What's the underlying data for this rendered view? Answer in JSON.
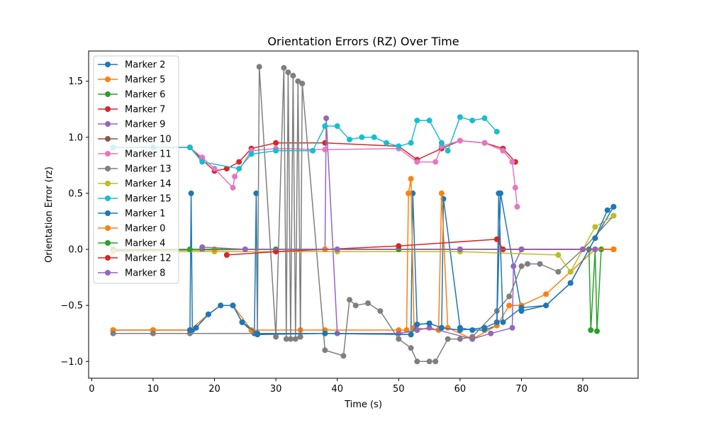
{
  "chart_data": {
    "type": "line",
    "title": "Orientation Errors (RZ) Over Time",
    "xlabel": "Time (s)",
    "ylabel": "Orientation Error (rz)",
    "xlim": [
      -0.5,
      89
    ],
    "ylim": [
      -1.15,
      1.77
    ],
    "xticks": [
      0,
      10,
      20,
      30,
      40,
      50,
      60,
      70,
      80
    ],
    "yticks": [
      -1.0,
      -0.5,
      0.0,
      0.5,
      1.0,
      1.5
    ],
    "ytick_labels": [
      "−1.0",
      "−0.5",
      "0.0",
      "0.5",
      "1.0",
      "1.5"
    ],
    "grid": false,
    "legend_position": "upper-left",
    "marker": "circle",
    "series": [
      {
        "name": "Marker 2",
        "color": "#1f77b4",
        "x": [
          3.5,
          10,
          16,
          16.2,
          16.4,
          17,
          19,
          21,
          23,
          24.5,
          26.5,
          26.8,
          27,
          38,
          52,
          52.3,
          53,
          55,
          57,
          57.3,
          60,
          62,
          64,
          66,
          66.6,
          70,
          74,
          78,
          82,
          85
        ],
        "y": [
          -0.72,
          -0.72,
          -0.72,
          0.5,
          -0.72,
          -0.7,
          -0.58,
          -0.5,
          -0.5,
          -0.65,
          -0.75,
          0.5,
          -0.76,
          -0.75,
          -0.76,
          0.5,
          -0.67,
          -0.66,
          -0.7,
          0.45,
          -0.7,
          -0.72,
          -0.72,
          -0.68,
          0.5,
          -0.55,
          -0.5,
          -0.3,
          0.1,
          0.38
        ]
      },
      {
        "name": "Marker 5",
        "color": "#ff7f0e",
        "x": [
          3.5,
          10,
          16,
          19,
          21,
          23,
          26,
          34,
          38,
          50,
          51.3,
          51.6,
          52,
          52.5,
          56.5,
          57,
          58,
          62,
          66,
          68,
          70,
          74,
          78,
          82,
          85
        ],
        "y": [
          -0.72,
          -0.72,
          -0.72,
          -0.58,
          -0.5,
          -0.5,
          -0.72,
          -0.72,
          -0.72,
          -0.72,
          -0.72,
          0.5,
          0.63,
          -0.7,
          -0.72,
          0.5,
          -0.7,
          -0.8,
          -0.68,
          -0.5,
          -0.5,
          -0.4,
          -0.2,
          0.0,
          0.0
        ]
      },
      {
        "name": "Marker 6",
        "color": "#2ca02c",
        "x": [
          3.5,
          20,
          40,
          60,
          80,
          81,
          81.3,
          82,
          82.3,
          83,
          85
        ],
        "y": [
          0.0,
          0.0,
          0.0,
          0.0,
          0.0,
          0.0,
          -0.72,
          0.0,
          -0.73,
          0.0,
          0.0
        ]
      },
      {
        "name": "Marker 7",
        "color": "#d62728",
        "x": [
          3.5,
          10,
          16,
          18,
          20,
          22,
          24,
          26,
          30,
          38,
          50,
          53,
          57,
          60,
          64,
          67,
          69
        ],
        "y": [
          0.91,
          0.91,
          0.91,
          0.8,
          0.7,
          0.72,
          0.78,
          0.9,
          0.95,
          0.95,
          0.92,
          0.8,
          0.9,
          0.97,
          0.95,
          0.9,
          0.78
        ]
      },
      {
        "name": "Marker 9",
        "color": "#9467bd",
        "x": [
          18,
          25,
          38,
          38.2,
          40,
          50,
          53,
          55,
          62,
          65,
          68.5,
          68.7,
          70,
          85
        ],
        "y": [
          0.0,
          0.0,
          0.0,
          1.17,
          -0.75,
          -0.75,
          -0.72,
          -0.7,
          -0.8,
          -0.75,
          -0.7,
          -0.15,
          0.0,
          0.0
        ]
      },
      {
        "name": "Marker 10",
        "color": "#8c564b",
        "x": [
          3.5,
          30,
          60,
          85
        ],
        "y": [
          -0.01,
          0.0,
          0.0,
          0.0
        ]
      },
      {
        "name": "Marker 11",
        "color": "#e377c2",
        "x": [
          3.5,
          10,
          16,
          18,
          20,
          23,
          23.3,
          26,
          30,
          38,
          50,
          53,
          56,
          57,
          60,
          64,
          67,
          68.5,
          69,
          69.3
        ],
        "y": [
          0.91,
          0.91,
          0.91,
          0.82,
          0.72,
          0.55,
          0.65,
          0.88,
          0.9,
          0.89,
          0.9,
          0.78,
          0.78,
          0.92,
          0.97,
          0.95,
          0.88,
          0.78,
          0.55,
          0.38
        ]
      },
      {
        "name": "Marker 13",
        "color": "#7f7f7f",
        "x": [
          3.5,
          10,
          16,
          27,
          27.3,
          30,
          31.3,
          31.7,
          32,
          32.4,
          32.8,
          33.2,
          33.6,
          34,
          34.3,
          38,
          41,
          42,
          43,
          45,
          47,
          50,
          52,
          53,
          55,
          56,
          58,
          60,
          62,
          66,
          68,
          70,
          71,
          73,
          76,
          80,
          85
        ],
        "y": [
          -0.75,
          -0.75,
          -0.75,
          -0.75,
          1.63,
          -0.78,
          1.62,
          -0.8,
          1.58,
          -0.8,
          1.55,
          -0.8,
          1.5,
          -0.78,
          1.48,
          -0.9,
          -0.95,
          -0.45,
          -0.5,
          -0.48,
          -0.55,
          -0.8,
          -0.88,
          -1.0,
          -1.0,
          -1.0,
          -0.8,
          -0.8,
          -0.78,
          -0.55,
          -0.42,
          -0.15,
          -0.13,
          -0.13,
          -0.2,
          0.0,
          0.3
        ]
      },
      {
        "name": "Marker 14",
        "color": "#bcbd22",
        "x": [
          3.5,
          20,
          40,
          60,
          76,
          78,
          80,
          82,
          85
        ],
        "y": [
          -0.02,
          -0.02,
          -0.02,
          -0.02,
          -0.05,
          -0.2,
          0.0,
          0.2,
          0.3
        ]
      },
      {
        "name": "Marker 15",
        "color": "#17becf",
        "x": [
          3.5,
          10,
          16,
          18,
          24,
          26,
          30,
          36,
          38,
          40,
          42,
          44,
          46,
          48,
          50,
          52,
          53,
          55,
          57,
          58,
          60,
          62,
          64,
          66
        ],
        "y": [
          0.91,
          0.91,
          0.91,
          0.78,
          0.72,
          0.85,
          0.88,
          0.88,
          1.1,
          1.1,
          0.98,
          1.0,
          1.0,
          0.95,
          0.92,
          0.95,
          1.15,
          1.15,
          0.95,
          0.88,
          1.18,
          1.15,
          1.17,
          1.05
        ]
      },
      {
        "name": "Marker 1",
        "color": "#1f77b4",
        "x": [
          16,
          17,
          19,
          21,
          23,
          24.5,
          27,
          38,
          52,
          53,
          55,
          57,
          60,
          64,
          66,
          66.3,
          67,
          70,
          74,
          78,
          82,
          84,
          85
        ],
        "y": [
          -0.72,
          -0.7,
          -0.58,
          -0.5,
          -0.5,
          -0.65,
          -0.75,
          -0.75,
          -0.76,
          -0.67,
          -0.66,
          -0.7,
          -0.72,
          -0.7,
          -0.65,
          0.5,
          -0.65,
          -0.52,
          -0.5,
          -0.3,
          0.1,
          0.35,
          0.38
        ]
      },
      {
        "name": "Marker 0",
        "color": "#ff7f0e",
        "x": [
          20,
          30,
          38,
          50,
          60,
          70,
          80,
          85
        ],
        "y": [
          0.0,
          0.0,
          0.0,
          0.0,
          0.0,
          0.0,
          0.0,
          0.0
        ]
      },
      {
        "name": "Marker 4",
        "color": "#2ca02c",
        "x": [
          16,
          30,
          50,
          70,
          80
        ],
        "y": [
          0.0,
          0.0,
          0.0,
          0.0,
          0.0
        ]
      },
      {
        "name": "Marker 12",
        "color": "#d62728",
        "x": [
          22,
          30,
          50,
          66,
          67,
          70,
          80,
          82
        ],
        "y": [
          -0.05,
          -0.02,
          0.03,
          0.09,
          0.0,
          0.0,
          0.0,
          0.0
        ]
      },
      {
        "name": "Marker 8",
        "color": "#9467bd",
        "x": [
          18,
          25,
          40,
          60,
          70,
          80,
          82
        ],
        "y": [
          0.02,
          0.0,
          0.0,
          0.0,
          0.0,
          0.0,
          0.0
        ]
      }
    ]
  }
}
